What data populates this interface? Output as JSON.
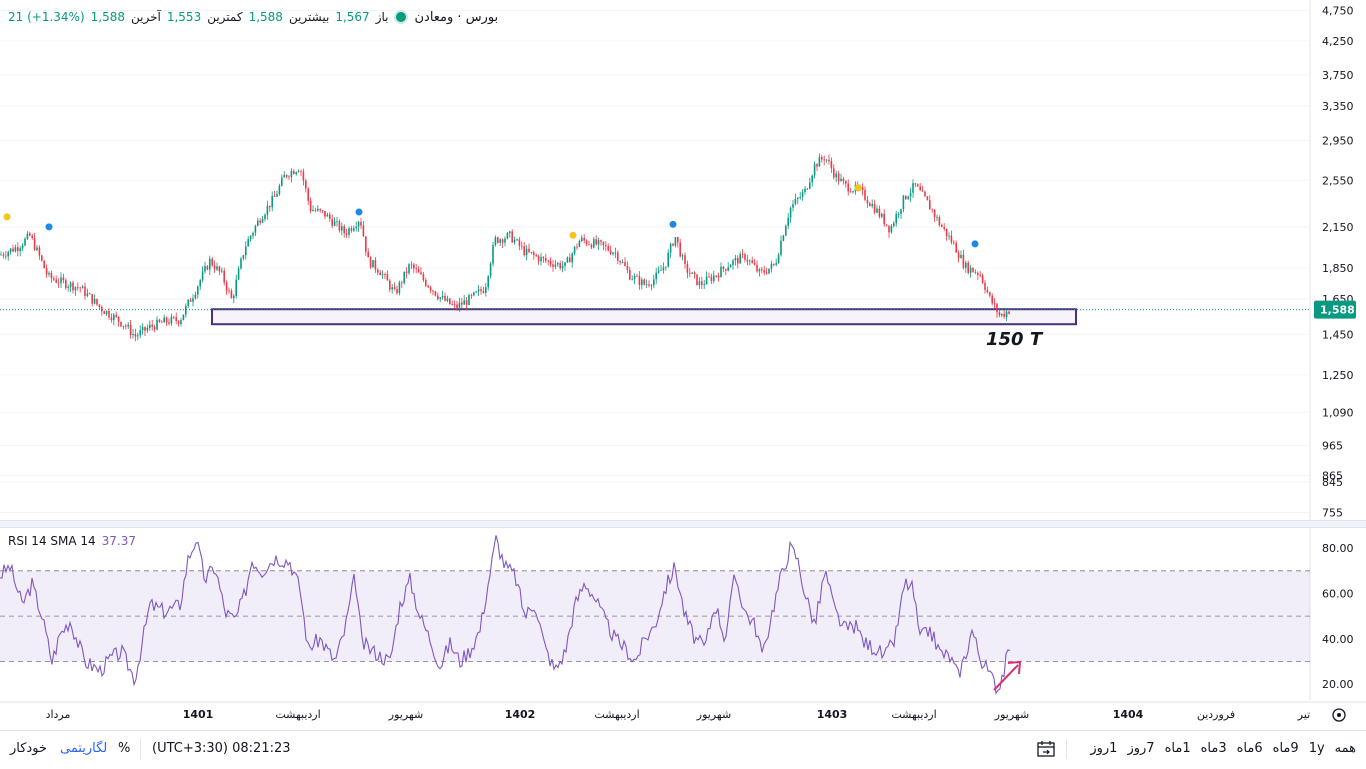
{
  "header": {
    "symbol": "بورس · ومعادن",
    "open_label": "باز",
    "open_value": "1,567",
    "high_label": "بیشترین",
    "high_value": "1,588",
    "low_label": "کمترین",
    "low_value": "1,553",
    "close_label": "آخرین",
    "close_value": "1,588",
    "change": "21 (+1.34%)"
  },
  "colors": {
    "up": "#089981",
    "down": "#f23645",
    "rsi": "#7e57c2",
    "box": "#4a2f7a",
    "arrow": "#d6336c",
    "dot_blue": "#1e88e5",
    "dot_yellow": "#f5c518"
  },
  "chart_data": [
    {
      "type": "candlestick",
      "price_axis": [
        "4,750",
        "4,250",
        "3,750",
        "3,350",
        "2,950",
        "2,550",
        "2,150",
        "1,850",
        "1,650",
        "1,450",
        "1,250",
        "1,090",
        "965",
        "865",
        "845",
        "755"
      ],
      "scale": "log",
      "ylim": [
        740,
        4900
      ],
      "last_price": "1,588",
      "annotation": "150 T",
      "support_zone": [
        1505,
        1590
      ],
      "x_labels": [
        "مرداد",
        "1401",
        "اردیبهشت",
        "شهریور",
        "1402",
        "اردیبهشت",
        "شهریور",
        "1403",
        "اردیبهشت",
        "شهریور",
        "1404",
        "فروردین",
        "تیر"
      ],
      "close_path": [
        [
          0,
          1940
        ],
        [
          18,
          2000
        ],
        [
          30,
          2080
        ],
        [
          48,
          1790
        ],
        [
          60,
          1760
        ],
        [
          80,
          1720
        ],
        [
          100,
          1600
        ],
        [
          115,
          1540
        ],
        [
          125,
          1500
        ],
        [
          135,
          1440
        ],
        [
          150,
          1490
        ],
        [
          165,
          1520
        ],
        [
          180,
          1530
        ],
        [
          195,
          1700
        ],
        [
          210,
          1900
        ],
        [
          222,
          1800
        ],
        [
          232,
          1640
        ],
        [
          245,
          2000
        ],
        [
          260,
          2220
        ],
        [
          275,
          2400
        ],
        [
          285,
          2600
        ],
        [
          300,
          2680
        ],
        [
          310,
          2300
        ],
        [
          325,
          2250
        ],
        [
          345,
          2100
        ],
        [
          360,
          2220
        ],
        [
          368,
          1900
        ],
        [
          380,
          1830
        ],
        [
          395,
          1680
        ],
        [
          410,
          1870
        ],
        [
          425,
          1760
        ],
        [
          440,
          1660
        ],
        [
          455,
          1600
        ],
        [
          470,
          1650
        ],
        [
          485,
          1720
        ],
        [
          495,
          2050
        ],
        [
          510,
          2080
        ],
        [
          525,
          1960
        ],
        [
          545,
          1900
        ],
        [
          565,
          1860
        ],
        [
          580,
          2050
        ],
        [
          600,
          2010
        ],
        [
          615,
          1960
        ],
        [
          630,
          1800
        ],
        [
          645,
          1740
        ],
        [
          655,
          1780
        ],
        [
          665,
          1870
        ],
        [
          675,
          2080
        ],
        [
          685,
          1850
        ],
        [
          700,
          1740
        ],
        [
          715,
          1800
        ],
        [
          730,
          1880
        ],
        [
          745,
          1930
        ],
        [
          760,
          1810
        ],
        [
          775,
          1870
        ],
        [
          790,
          2300
        ],
        [
          805,
          2450
        ],
        [
          815,
          2700
        ],
        [
          825,
          2780
        ],
        [
          835,
          2600
        ],
        [
          845,
          2500
        ],
        [
          860,
          2450
        ],
        [
          875,
          2300
        ],
        [
          890,
          2130
        ],
        [
          905,
          2400
        ],
        [
          915,
          2500
        ],
        [
          928,
          2340
        ],
        [
          940,
          2170
        ],
        [
          955,
          2000
        ],
        [
          965,
          1860
        ],
        [
          980,
          1810
        ],
        [
          990,
          1650
        ],
        [
          1000,
          1550
        ],
        [
          1010,
          1588
        ]
      ],
      "markers": [
        {
          "color": "yellow",
          "x": 7,
          "price": 2230
        },
        {
          "color": "blue",
          "x": 49,
          "price": 2150
        },
        {
          "color": "blue",
          "x": 359,
          "price": 2270
        },
        {
          "color": "yellow",
          "x": 573,
          "price": 2085
        },
        {
          "color": "blue",
          "x": 673,
          "price": 2170
        },
        {
          "color": "yellow",
          "x": 858,
          "price": 2480
        },
        {
          "color": "blue",
          "x": 975,
          "price": 2020
        }
      ]
    },
    {
      "type": "line",
      "title": "RSI 14 SMA 14",
      "current_value": "37.37",
      "y_ticks": [
        "80.00",
        "60.00",
        "40.00",
        "20.00"
      ],
      "ylim": [
        13,
        88
      ],
      "band": [
        30,
        70
      ],
      "midline": 50,
      "series": [
        {
          "values": [
            [
              0,
              68
            ],
            [
              10,
              72
            ],
            [
              22,
              55
            ],
            [
              32,
              64
            ],
            [
              42,
              50
            ],
            [
              52,
              30
            ],
            [
              60,
              42
            ],
            [
              70,
              48
            ],
            [
              85,
              30
            ],
            [
              100,
              26
            ],
            [
              112,
              32
            ],
            [
              122,
              34
            ],
            [
              135,
              22
            ],
            [
              142,
              38
            ],
            [
              150,
              55
            ],
            [
              165,
              52
            ],
            [
              180,
              55
            ],
            [
              188,
              75
            ],
            [
              196,
              84
            ],
            [
              205,
              66
            ],
            [
              215,
              72
            ],
            [
              225,
              52
            ],
            [
              235,
              48
            ],
            [
              245,
              60
            ],
            [
              252,
              75
            ],
            [
              262,
              70
            ],
            [
              275,
              76
            ],
            [
              290,
              74
            ],
            [
              300,
              62
            ],
            [
              308,
              36
            ],
            [
              320,
              40
            ],
            [
              335,
              30
            ],
            [
              345,
              44
            ],
            [
              355,
              68
            ],
            [
              362,
              38
            ],
            [
              375,
              34
            ],
            [
              390,
              30
            ],
            [
              400,
              55
            ],
            [
              410,
              66
            ],
            [
              420,
              50
            ],
            [
              430,
              40
            ],
            [
              440,
              28
            ],
            [
              450,
              38
            ],
            [
              460,
              30
            ],
            [
              470,
              35
            ],
            [
              480,
              44
            ],
            [
              488,
              64
            ],
            [
              496,
              84
            ],
            [
              505,
              72
            ],
            [
              515,
              68
            ],
            [
              525,
              50
            ],
            [
              535,
              56
            ],
            [
              545,
              36
            ],
            [
              555,
              26
            ],
            [
              565,
              34
            ],
            [
              575,
              55
            ],
            [
              585,
              65
            ],
            [
              595,
              58
            ],
            [
              605,
              48
            ],
            [
              615,
              40
            ],
            [
              625,
              36
            ],
            [
              635,
              30
            ],
            [
              645,
              40
            ],
            [
              655,
              46
            ],
            [
              665,
              62
            ],
            [
              675,
              72
            ],
            [
              685,
              50
            ],
            [
              695,
              40
            ],
            [
              705,
              36
            ],
            [
              715,
              56
            ],
            [
              725,
              40
            ],
            [
              735,
              68
            ],
            [
              745,
              52
            ],
            [
              755,
              46
            ],
            [
              763,
              32
            ],
            [
              770,
              48
            ],
            [
              780,
              66
            ],
            [
              790,
              80
            ],
            [
              797,
              76
            ],
            [
              805,
              60
            ],
            [
              815,
              46
            ],
            [
              825,
              70
            ],
            [
              835,
              52
            ],
            [
              845,
              44
            ],
            [
              855,
              46
            ],
            [
              865,
              38
            ],
            [
              875,
              36
            ],
            [
              885,
              32
            ],
            [
              895,
              40
            ],
            [
              905,
              65
            ],
            [
              913,
              62
            ],
            [
              920,
              40
            ],
            [
              930,
              44
            ],
            [
              940,
              34
            ],
            [
              950,
              32
            ],
            [
              958,
              24
            ],
            [
              965,
              32
            ],
            [
              972,
              44
            ],
            [
              980,
              32
            ],
            [
              990,
              24
            ],
            [
              998,
              18
            ],
            [
              1005,
              28
            ],
            [
              1010,
              37
            ]
          ]
        }
      ]
    }
  ],
  "toolbar": {
    "ranges": [
      "همه",
      "1y",
      "9ماه",
      "6ماه",
      "3ماه",
      "1ماه",
      "7روز",
      "1روز"
    ],
    "time": "(UTC+3:30) 08:21:23",
    "percent": "%",
    "log": "لگاریتمی",
    "auto": "خودکار"
  }
}
